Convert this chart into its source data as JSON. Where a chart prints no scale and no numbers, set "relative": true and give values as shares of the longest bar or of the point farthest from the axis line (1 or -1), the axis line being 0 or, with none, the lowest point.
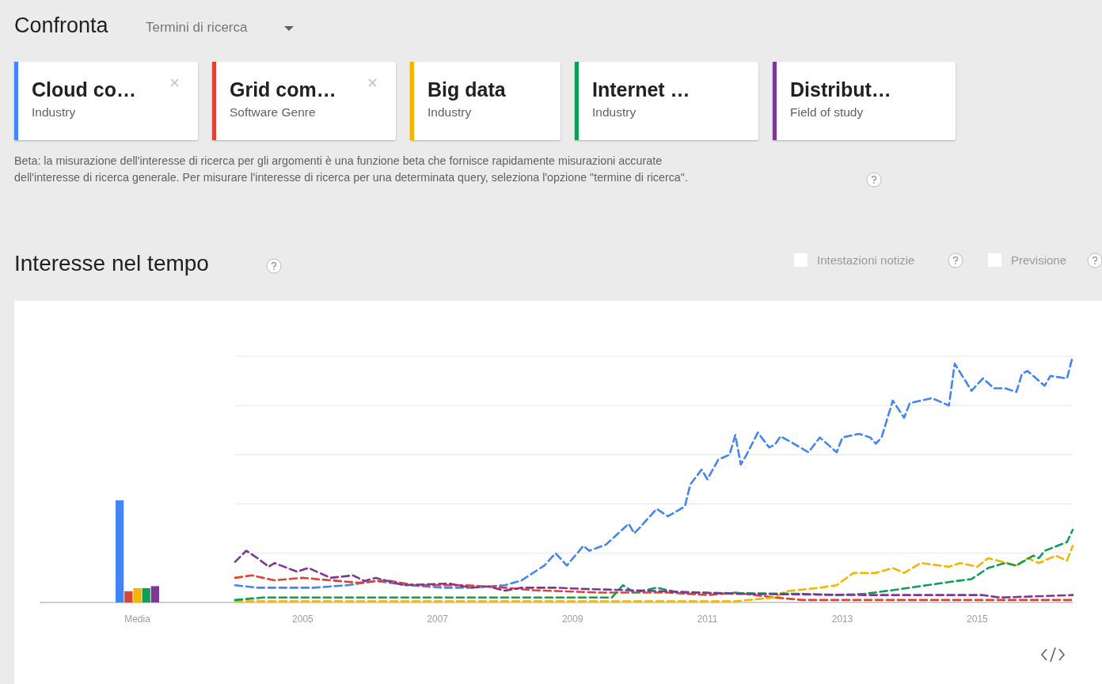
{
  "chart_data": [
    {
      "type": "other",
      "title": "Confronta",
      "subtitle": "Termini di ricerca",
      "annotations": [
        "Beta: la misurazione dell'interesse di ricerca per gli argomenti è una funzione beta che fornisce rapidamente misurazioni accurate dell'interesse di ricerca generale. Per misurare l'interesse di ricerca per una determinata query, seleziona l'opzione \"termine di ricerca\"."
      ]
    },
    {
      "type": "bar",
      "categories": [
        "Media"
      ],
      "relative": true,
      "series": [
        {
          "color": "#4285f4",
          "values": [
            1
          ]
        },
        {
          "color": "#db4437",
          "values": [
            0.11
          ]
        },
        {
          "color": "#f4b400",
          "values": [
            0.14
          ]
        },
        {
          "color": "#0f9d58",
          "values": [
            0.14
          ]
        },
        {
          "color": "#7e3794",
          "values": [
            0.16
          ]
        }
      ]
    },
    {
      "type": "line",
      "title": "Interesse nel tempo",
      "relative": true,
      "xlim": [
        "2004-01",
        "2016-06"
      ],
      "xticks": [
        "2005",
        "2007",
        "2009",
        "2011",
        "2013",
        "2015"
      ],
      "grid": "y",
      "legend": "top",
      "line_style": "dashed",
      "annotations": [
        "Industry",
        "Software Genre",
        "Industry",
        "Industry",
        "Field of study",
        "Intestazioni notizie",
        "Previsione"
      ],
      "series": [
        {
          "name": "Cloud co…",
          "color": "#4285f4",
          "x": [
            "2004-01",
            "2004-05",
            "2005-03",
            "2005-09",
            "2006-02",
            "2006-08",
            "2007-02",
            "2007-07",
            "2008-01",
            "2008-04",
            "2008-08",
            "2008-10",
            "2008-12",
            "2009-03",
            "2009-04",
            "2009-07",
            "2009-11",
            "2009-12",
            "2010-01",
            "2010-04",
            "2010-06",
            "2010-09",
            "2010-10",
            "2010-12",
            "2011-01",
            "2011-03",
            "2011-05",
            "2011-06",
            "2011-07",
            "2011-08",
            "2011-10",
            "2011-12",
            "2012-01",
            "2012-02",
            "2012-04",
            "2012-07",
            "2012-09",
            "2012-12",
            "2013-01",
            "2013-04",
            "2013-06",
            "2013-07",
            "2013-08",
            "2013-10",
            "2013-12",
            "2014-01",
            "2014-05",
            "2014-08",
            "2014-09",
            "2014-12",
            "2015-02",
            "2015-04",
            "2015-06",
            "2015-08",
            "2015-09",
            "2015-10",
            "2016-01",
            "2016-02",
            "2016-05",
            "2016-06"
          ],
          "values": [
            0.07,
            0.06,
            0.06,
            0.07,
            0.087,
            0.07,
            0.06,
            0.06,
            0.07,
            0.09,
            0.15,
            0.2,
            0.15,
            0.23,
            0.21,
            0.235,
            0.32,
            0.28,
            0.305,
            0.38,
            0.35,
            0.39,
            0.48,
            0.54,
            0.5,
            0.58,
            0.6,
            0.68,
            0.56,
            0.6,
            0.69,
            0.63,
            0.64,
            0.675,
            0.65,
            0.61,
            0.67,
            0.61,
            0.67,
            0.685,
            0.67,
            0.645,
            0.67,
            0.82,
            0.75,
            0.81,
            0.83,
            0.8,
            0.97,
            0.86,
            0.91,
            0.87,
            0.87,
            0.855,
            0.93,
            0.94,
            0.88,
            0.92,
            0.91,
            1
          ]
        },
        {
          "name": "Grid com…",
          "color": "#db4437",
          "x": [
            "2004-01",
            "2004-04",
            "2004-08",
            "2005-01",
            "2005-06",
            "2005-11",
            "2006-04",
            "2006-09",
            "2007-06",
            "2008-01",
            "2008-06",
            "2009-06",
            "2010-06",
            "2011-01",
            "2011-06",
            "2012-01",
            "2012-06",
            "2013-06",
            "2014-06",
            "2016-06"
          ],
          "values": [
            0.1,
            0.11,
            0.09,
            0.1,
            0.09,
            0.08,
            0.09,
            0.07,
            0.07,
            0.06,
            0.05,
            0.04,
            0.04,
            0.03,
            0.04,
            0.02,
            0.01,
            0.01,
            0.01,
            0.01
          ]
        },
        {
          "name": "Big data",
          "color": "#f4b400",
          "x": [
            "2004-01",
            "2011-06",
            "2012-01",
            "2012-03",
            "2012-09",
            "2012-12",
            "2013-03",
            "2013-07",
            "2013-10",
            "2013-12",
            "2014-03",
            "2014-08",
            "2014-10",
            "2015-01",
            "2015-03",
            "2015-08",
            "2015-10",
            "2015-12",
            "2016-03",
            "2016-05",
            "2016-06"
          ],
          "values": [
            0.005,
            0.005,
            0.02,
            0.045,
            0.06,
            0.07,
            0.12,
            0.12,
            0.14,
            0.12,
            0.16,
            0.145,
            0.16,
            0.145,
            0.18,
            0.15,
            0.18,
            0.16,
            0.19,
            0.17,
            0.23
          ]
        },
        {
          "name": "Internet …",
          "color": "#0f9d58",
          "x": [
            "2004-01",
            "2004-06",
            "2009-08",
            "2009-10",
            "2009-12",
            "2010-04",
            "2010-08",
            "2012-06",
            "2012-12",
            "2013-05",
            "2013-10",
            "2014-01",
            "2014-08",
            "2014-12",
            "2015-03",
            "2015-06",
            "2015-08",
            "2015-11",
            "2015-12",
            "2016-01",
            "2016-05",
            "2016-06"
          ],
          "values": [
            0.01,
            0.02,
            0.02,
            0.07,
            0.04,
            0.06,
            0.04,
            0.035,
            0.03,
            0.035,
            0.05,
            0.06,
            0.083,
            0.095,
            0.14,
            0.16,
            0.15,
            0.19,
            0.18,
            0.21,
            0.245,
            0.295
          ]
        },
        {
          "name": "Distribut…",
          "color": "#7e3794",
          "x": [
            "2004-01",
            "2004-03",
            "2004-05",
            "2004-07",
            "2004-08",
            "2004-12",
            "2005-02",
            "2005-06",
            "2005-10",
            "2005-12",
            "2006-02",
            "2006-07",
            "2007-03",
            "2007-07",
            "2007-10",
            "2008-01",
            "2008-04",
            "2008-10",
            "2009-03",
            "2010-06",
            "2011-06",
            "2013-06",
            "2015-02",
            "2015-05",
            "2016-06"
          ],
          "values": [
            0.165,
            0.21,
            0.18,
            0.145,
            0.16,
            0.125,
            0.14,
            0.1,
            0.11,
            0.087,
            0.1,
            0.07,
            0.077,
            0.06,
            0.065,
            0.048,
            0.06,
            0.06,
            0.055,
            0.045,
            0.035,
            0.03,
            0.03,
            0.02,
            0.03
          ]
        }
      ]
    }
  ]
}
